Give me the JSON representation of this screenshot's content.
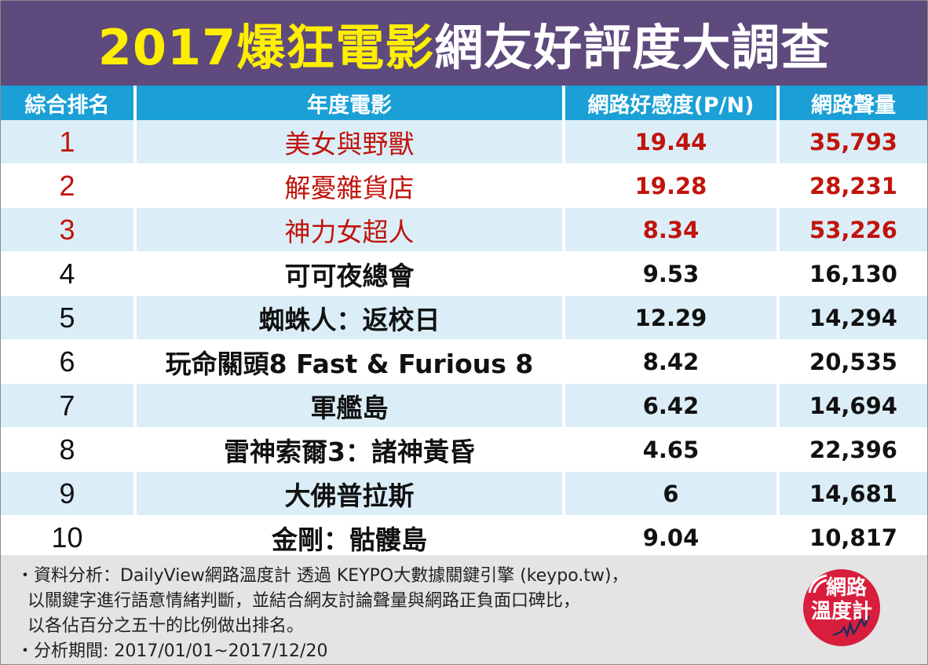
{
  "title": {
    "highlight": "2017爆狂電影",
    "rest": "網友好評度大調查"
  },
  "chart_data": {
    "type": "table",
    "columns": [
      "綜合排名",
      "年度電影",
      "網路好感度(P/N)",
      "網路聲量"
    ],
    "rows": [
      {
        "rank": "1",
        "movie": "美女與野獸",
        "pn": "19.44",
        "volume": "35,793"
      },
      {
        "rank": "2",
        "movie": "解憂雜貨店",
        "pn": "19.28",
        "volume": "28,231"
      },
      {
        "rank": "3",
        "movie": "神力女超人",
        "pn": "8.34",
        "volume": "53,226"
      },
      {
        "rank": "4",
        "movie": "可可夜總會",
        "pn": "9.53",
        "volume": "16,130"
      },
      {
        "rank": "5",
        "movie": "蜘蛛人：返校日",
        "pn": "12.29",
        "volume": "14,294"
      },
      {
        "rank": "6",
        "movie": "玩命關頭8 Fast & Furious 8",
        "pn": "8.42",
        "volume": "20,535"
      },
      {
        "rank": "7",
        "movie": "軍艦島",
        "pn": "6.42",
        "volume": "14,694"
      },
      {
        "rank": "8",
        "movie": "雷神索爾3：諸神黃昏",
        "pn": "4.65",
        "volume": "22,396"
      },
      {
        "rank": "9",
        "movie": "大佛普拉斯",
        "pn": "6",
        "volume": "14,681"
      },
      {
        "rank": "10",
        "movie": "金剛：骷髏島",
        "pn": "9.04",
        "volume": "10,817"
      }
    ]
  },
  "notes": {
    "line1": "・資料分析：DailyView網路溫度計 透過 KEYPO大數據關鍵引擎 (keypo.tw)，",
    "line2": "以關鍵字進行語意情緒判斷，並結合網友討論聲量與網路正負面口碑比，",
    "line3": "以各佔百分之五十的比例做出排名。",
    "line4": "・分析期間: 2017/01/01~2017/12/20"
  },
  "badge": {
    "line1": "網路",
    "line2": "溫度計"
  },
  "colors": {
    "title_bg": "#5e4a7c",
    "title_highlight": "#ffee00",
    "header_bg": "#1aa0d6",
    "row_stripe": "#dbeef8",
    "top3_text": "#c0140c",
    "badge_red": "#d81e3c",
    "notes_bg": "#e4e4e4"
  }
}
